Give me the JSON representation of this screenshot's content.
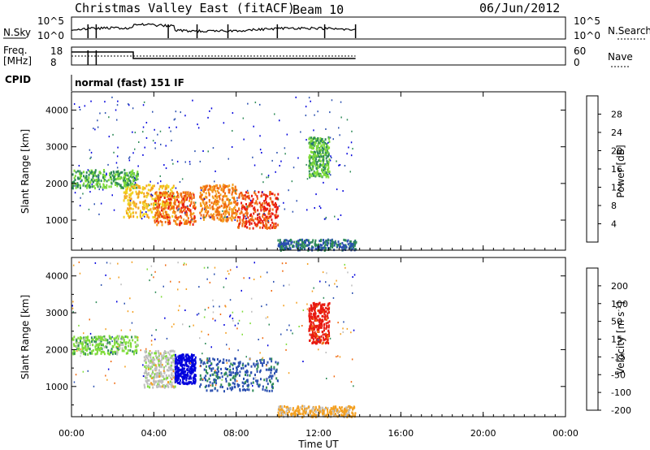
{
  "header": {
    "radar_title": "Christmas Valley East (fitACF)",
    "beam": "Beam 10",
    "date": "06/Jun/2012"
  },
  "aux_panels": {
    "nsky_label": "N.Sky",
    "nsky_ticks": [
      "10^5",
      "10^0"
    ],
    "nsearch_label": "N.Search",
    "nsearch_ticks": [
      "10^5",
      "10^0"
    ],
    "freq_label": "Freq.",
    "freq_unit": "[MHz]",
    "freq_ticks": [
      "18",
      "8"
    ],
    "nave_label": "Nave",
    "nave_ticks": [
      "60",
      "0"
    ],
    "cpid_label": "CPID",
    "cpid_value": "normal (fast) 151 IF"
  },
  "colors": {
    "power_scale": [
      "#0000dd",
      "#2a4fb0",
      "#2e8b57",
      "#7fdc3a",
      "#f0d21e",
      "#f4a020",
      "#f06a10",
      "#e81a10"
    ],
    "velocity_scale": [
      "#e81a10",
      "#f06a10",
      "#f4a020",
      "#bebebe",
      "#7fdc3a",
      "#2e8b57",
      "#2a4fb0",
      "#0000dd"
    ]
  },
  "chart_data": [
    {
      "type": "heatmap",
      "name": "power",
      "ylabel": "Slant Range [km]",
      "yticks": [
        "1000",
        "2000",
        "3000",
        "4000"
      ],
      "ylim": [
        180,
        4500
      ],
      "xlim": [
        "00:00",
        "24:00"
      ],
      "colorbar_label": "Power [dB]",
      "colorbar_ticks": [
        "4",
        "8",
        "12",
        "16",
        "20",
        "24",
        "28"
      ],
      "data_extent": [
        "00:00",
        "13:50"
      ],
      "echo_regions": [
        {
          "t": [
            0.0,
            3.2
          ],
          "range": [
            1900,
            2400
          ],
          "dB": 12
        },
        {
          "t": [
            2.5,
            5.0
          ],
          "range": [
            1100,
            2000
          ],
          "dB": 20
        },
        {
          "t": [
            4.0,
            6.0
          ],
          "range": [
            900,
            1800
          ],
          "dB": 26
        },
        {
          "t": [
            6.2,
            8.0
          ],
          "range": [
            1000,
            2000
          ],
          "dB": 24
        },
        {
          "t": [
            8.0,
            10.0
          ],
          "range": [
            800,
            1800
          ],
          "dB": 28
        },
        {
          "t": [
            11.5,
            12.5
          ],
          "range": [
            2200,
            3300
          ],
          "dB": 12
        },
        {
          "t": [
            10.0,
            13.8
          ],
          "range": [
            200,
            500
          ],
          "dB": 8
        }
      ]
    },
    {
      "type": "heatmap",
      "name": "velocity",
      "xlabel": "Time UT",
      "xticks": [
        "00:00",
        "04:00",
        "08:00",
        "12:00",
        "16:00",
        "20:00",
        "00:00"
      ],
      "ylabel": "Slant Range [km]",
      "yticks": [
        "1000",
        "2000",
        "3000",
        "4000"
      ],
      "ylim": [
        180,
        4500
      ],
      "colorbar_label": "Velocity [m s^-1]",
      "colorbar_ticks": [
        "200",
        "100",
        "50",
        "15",
        "-15",
        "-50",
        "-100",
        "-200"
      ],
      "echo_regions": [
        {
          "t": [
            0.0,
            3.2
          ],
          "range": [
            1900,
            2400
          ],
          "v": 0
        },
        {
          "t": [
            3.5,
            5.0
          ],
          "range": [
            1000,
            2000
          ],
          "v": -30
        },
        {
          "t": [
            5.0,
            6.0
          ],
          "range": [
            1100,
            1900
          ],
          "v": 200
        },
        {
          "t": [
            6.2,
            10.0
          ],
          "range": [
            900,
            1800
          ],
          "v": 60
        },
        {
          "t": [
            11.5,
            12.5
          ],
          "range": [
            2200,
            3300
          ],
          "v": -220
        },
        {
          "t": [
            10.0,
            13.8
          ],
          "range": [
            200,
            500
          ],
          "v": -60
        }
      ]
    }
  ]
}
